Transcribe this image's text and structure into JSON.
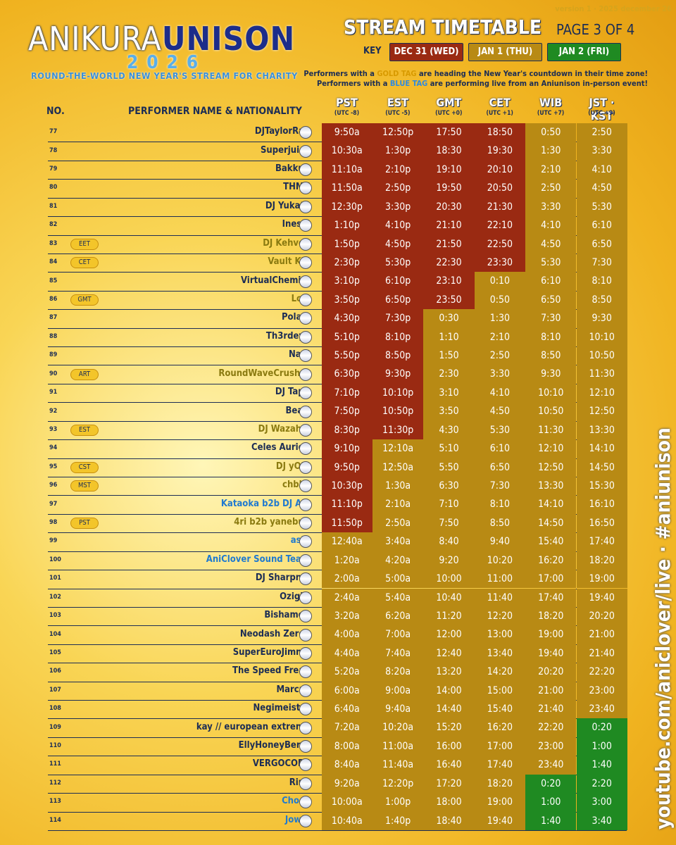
{
  "header": {
    "logo": "ANIKURA",
    "logo_bold": "UNISON",
    "year": "2026",
    "tagline": "ROUND-THE-WORLD NEW YEAR'S STREAM FOR CHARITY",
    "title": "STREAM TIMETABLE",
    "page": "PAGE 3 OF 4",
    "version": "version 1 · 2025 december 26"
  },
  "key": {
    "label": "KEY",
    "days": [
      {
        "label": "DEC 31 (WED)",
        "color": "#9a2a12"
      },
      {
        "label": "JAN 1 (THU)",
        "color": "#b88a14"
      },
      {
        "label": "JAN 2 (FRI)",
        "color": "#1f8a22"
      }
    ]
  },
  "notes": [
    [
      "Performers with a ",
      "GOLD TAG",
      " are heading the New Year's countdown in their time zone!"
    ],
    [
      "Performers with a ",
      "BLUE TAG",
      " are performing live from an Aniunison in-person event!"
    ]
  ],
  "side_text": "youtube.com/aniclover/live · #aniunison",
  "columns": {
    "no": "NO.",
    "performer": "PERFORMER NAME & NATIONALITY",
    "zones": [
      {
        "name": "PST",
        "utc": "(UTC -8)"
      },
      {
        "name": "EST",
        "utc": "(UTC -5)"
      },
      {
        "name": "GMT",
        "utc": "(UTC +0)"
      },
      {
        "name": "CET",
        "utc": "(UTC +1)"
      },
      {
        "name": "WIB",
        "utc": "(UTC +7)"
      },
      {
        "name": "JST · KST",
        "utc": "(UTC +9)"
      }
    ]
  },
  "rows": [
    {
      "no": 77,
      "name": "DJTaylorRae",
      "times": [
        "9:50a",
        "12:50p",
        "17:50",
        "18:50",
        "0:50",
        "2:50"
      ],
      "days": [
        0,
        0,
        0,
        0,
        1,
        1
      ]
    },
    {
      "no": 78,
      "name": "Superjuice",
      "times": [
        "10:30a",
        "1:30p",
        "18:30",
        "19:30",
        "1:30",
        "3:30"
      ],
      "days": [
        0,
        0,
        0,
        0,
        1,
        1
      ]
    },
    {
      "no": 79,
      "name": "Bakkun",
      "times": [
        "11:10a",
        "2:10p",
        "19:10",
        "20:10",
        "2:10",
        "4:10"
      ],
      "days": [
        0,
        0,
        0,
        0,
        1,
        1
      ]
    },
    {
      "no": 80,
      "name": "THMZ",
      "times": [
        "11:50a",
        "2:50p",
        "19:50",
        "20:50",
        "2:50",
        "4:50"
      ],
      "days": [
        0,
        0,
        0,
        0,
        1,
        1
      ]
    },
    {
      "no": 81,
      "name": "DJ Yukata",
      "times": [
        "12:30p",
        "3:30p",
        "20:30",
        "21:30",
        "3:30",
        "5:30"
      ],
      "days": [
        0,
        0,
        0,
        0,
        1,
        1
      ]
    },
    {
      "no": 82,
      "name": "Ineski",
      "times": [
        "1:10p",
        "4:10p",
        "21:10",
        "22:10",
        "4:10",
        "6:10"
      ],
      "days": [
        0,
        0,
        0,
        0,
        1,
        1
      ]
    },
    {
      "no": 83,
      "tag": "EET",
      "name": "DJ Kehveli",
      "name_color": "gold",
      "times": [
        "1:50p",
        "4:50p",
        "21:50",
        "22:50",
        "4:50",
        "6:50"
      ],
      "days": [
        0,
        0,
        0,
        0,
        1,
        1
      ]
    },
    {
      "no": 84,
      "tag": "CET",
      "name": "Vault Kid",
      "name_color": "gold",
      "times": [
        "2:30p",
        "5:30p",
        "22:30",
        "23:30",
        "5:30",
        "7:30"
      ],
      "days": [
        0,
        0,
        0,
        0,
        1,
        1
      ]
    },
    {
      "no": 85,
      "name": "VirtualChemist",
      "times": [
        "3:10p",
        "6:10p",
        "23:10",
        "0:10",
        "6:10",
        "8:10"
      ],
      "days": [
        0,
        0,
        0,
        1,
        1,
        1
      ]
    },
    {
      "no": 86,
      "tag": "GMT",
      "name": "Loic",
      "name_color": "gold",
      "times": [
        "3:50p",
        "6:50p",
        "23:50",
        "0:50",
        "6:50",
        "8:50"
      ],
      "days": [
        0,
        0,
        0,
        1,
        1,
        1
      ]
    },
    {
      "no": 87,
      "name": "Polarr",
      "times": [
        "4:30p",
        "7:30p",
        "0:30",
        "1:30",
        "7:30",
        "9:30"
      ],
      "days": [
        0,
        0,
        1,
        1,
        1,
        1
      ]
    },
    {
      "no": 88,
      "name": "Th3rdeye",
      "times": [
        "5:10p",
        "8:10p",
        "1:10",
        "2:10",
        "8:10",
        "10:10"
      ],
      "days": [
        0,
        0,
        1,
        1,
        1,
        1
      ]
    },
    {
      "no": 89,
      "name": "Nagi",
      "times": [
        "5:50p",
        "8:50p",
        "1:50",
        "2:50",
        "8:50",
        "10:50"
      ],
      "days": [
        0,
        0,
        1,
        1,
        1,
        1
      ]
    },
    {
      "no": 90,
      "tag": "ART",
      "name": "RoundWaveCrusher",
      "name_color": "gold",
      "times": [
        "6:30p",
        "9:30p",
        "2:30",
        "3:30",
        "9:30",
        "11:30"
      ],
      "days": [
        0,
        0,
        1,
        1,
        1,
        1
      ]
    },
    {
      "no": 91,
      "name": "DJ Tapp",
      "times": [
        "7:10p",
        "10:10p",
        "3:10",
        "4:10",
        "10:10",
        "12:10"
      ],
      "days": [
        0,
        0,
        1,
        1,
        1,
        1
      ]
    },
    {
      "no": 92,
      "name": "Beari",
      "times": [
        "7:50p",
        "10:50p",
        "3:50",
        "4:50",
        "10:50",
        "12:50"
      ],
      "days": [
        0,
        0,
        1,
        1,
        1,
        1
      ]
    },
    {
      "no": 93,
      "tag": "EST",
      "name": "DJ Wazahai",
      "name_color": "gold",
      "times": [
        "8:30p",
        "11:30p",
        "4:30",
        "5:30",
        "11:30",
        "13:30"
      ],
      "days": [
        0,
        0,
        1,
        1,
        1,
        1
      ]
    },
    {
      "no": 94,
      "name": "Celes Aurion",
      "times": [
        "9:10p",
        "12:10a",
        "5:10",
        "6:10",
        "12:10",
        "14:10"
      ],
      "days": [
        0,
        1,
        1,
        1,
        1,
        1
      ]
    },
    {
      "no": 95,
      "tag": "CST",
      "name": "DJ yObi",
      "name_color": "gold",
      "times": [
        "9:50p",
        "12:50a",
        "5:50",
        "6:50",
        "12:50",
        "14:50"
      ],
      "days": [
        0,
        1,
        1,
        1,
        1,
        1
      ]
    },
    {
      "no": 96,
      "tag": "MST",
      "name": "chbbs",
      "name_color": "gold",
      "times": [
        "10:30p",
        "1:30a",
        "6:30",
        "7:30",
        "13:30",
        "15:30"
      ],
      "days": [
        0,
        1,
        1,
        1,
        1,
        1
      ]
    },
    {
      "no": 97,
      "name": "Kataoka b2b DJ AJL",
      "name_color": "blue",
      "times": [
        "11:10p",
        "2:10a",
        "7:10",
        "8:10",
        "14:10",
        "16:10"
      ],
      "days": [
        0,
        1,
        1,
        1,
        1,
        1
      ]
    },
    {
      "no": 98,
      "tag": "PST",
      "name": "4ri b2b yanebun",
      "name_color": "gold",
      "times": [
        "11:50p",
        "2:50a",
        "7:50",
        "8:50",
        "14:50",
        "16:50"
      ],
      "days": [
        0,
        1,
        1,
        1,
        1,
        1
      ]
    },
    {
      "no": 99,
      "name": "asid",
      "name_color": "blue",
      "times": [
        "12:40a",
        "3:40a",
        "8:40",
        "9:40",
        "15:40",
        "17:40"
      ],
      "days": [
        1,
        1,
        1,
        1,
        1,
        1
      ]
    },
    {
      "no": 100,
      "name": "AniClover Sound Team",
      "name_color": "blue",
      "times": [
        "1:20a",
        "4:20a",
        "9:20",
        "10:20",
        "16:20",
        "18:20"
      ],
      "days": [
        1,
        1,
        1,
        1,
        1,
        1
      ]
    },
    {
      "no": 101,
      "name": "DJ Sharpnel",
      "times": [
        "2:00a",
        "5:00a",
        "10:00",
        "11:00",
        "17:00",
        "19:00"
      ],
      "days": [
        1,
        1,
        1,
        1,
        1,
        1
      ]
    },
    {
      "no": 102,
      "name": "Ozigiri",
      "times": [
        "2:40a",
        "5:40a",
        "10:40",
        "11:40",
        "17:40",
        "19:40"
      ],
      "days": [
        1,
        1,
        1,
        1,
        1,
        1
      ]
    },
    {
      "no": 103,
      "name": "Bishamon",
      "times": [
        "3:20a",
        "6:20a",
        "11:20",
        "12:20",
        "18:20",
        "20:20"
      ],
      "days": [
        1,
        1,
        1,
        1,
        1,
        1
      ]
    },
    {
      "no": 104,
      "name": "Neodash Zerox",
      "times": [
        "4:00a",
        "7:00a",
        "12:00",
        "13:00",
        "19:00",
        "21:00"
      ],
      "days": [
        1,
        1,
        1,
        1,
        1,
        1
      ]
    },
    {
      "no": 105,
      "name": "SuperEuroJimmy",
      "times": [
        "4:40a",
        "7:40a",
        "12:40",
        "13:40",
        "19:40",
        "21:40"
      ],
      "days": [
        1,
        1,
        1,
        1,
        1,
        1
      ]
    },
    {
      "no": 106,
      "name": "The Speed Freak",
      "times": [
        "5:20a",
        "8:20a",
        "13:20",
        "14:20",
        "20:20",
        "22:20"
      ],
      "days": [
        1,
        1,
        1,
        1,
        1,
        1
      ]
    },
    {
      "no": 107,
      "name": "Marcus",
      "times": [
        "6:00a",
        "9:00a",
        "14:00",
        "15:00",
        "21:00",
        "23:00"
      ],
      "days": [
        1,
        1,
        1,
        1,
        1,
        1
      ]
    },
    {
      "no": 108,
      "name": "Negimeister",
      "times": [
        "6:40a",
        "9:40a",
        "14:40",
        "15:40",
        "21:40",
        "23:40"
      ],
      "days": [
        1,
        1,
        1,
        1,
        1,
        1
      ]
    },
    {
      "no": 109,
      "name": "kay // european extreme",
      "times": [
        "7:20a",
        "10:20a",
        "15:20",
        "16:20",
        "22:20",
        "0:20"
      ],
      "days": [
        1,
        1,
        1,
        1,
        1,
        2
      ]
    },
    {
      "no": 110,
      "name": "EllyHoneyBerry",
      "times": [
        "8:00a",
        "11:00a",
        "16:00",
        "17:00",
        "23:00",
        "1:00"
      ],
      "days": [
        1,
        1,
        1,
        1,
        1,
        2
      ]
    },
    {
      "no": 111,
      "name": "VERGOCORE",
      "times": [
        "8:40a",
        "11:40a",
        "16:40",
        "17:40",
        "23:40",
        "1:40"
      ],
      "days": [
        1,
        1,
        1,
        1,
        1,
        2
      ]
    },
    {
      "no": 112,
      "name": "Rine",
      "times": [
        "9:20a",
        "12:20p",
        "17:20",
        "18:20",
        "0:20",
        "2:20"
      ],
      "days": [
        1,
        1,
        1,
        1,
        2,
        2
      ]
    },
    {
      "no": 113,
      "name": "Choco",
      "name_color": "blue",
      "times": [
        "10:00a",
        "1:00p",
        "18:00",
        "19:00",
        "1:00",
        "3:00"
      ],
      "days": [
        1,
        1,
        1,
        1,
        2,
        2
      ]
    },
    {
      "no": 114,
      "name": "Jowie",
      "name_color": "blue",
      "times": [
        "10:40a",
        "1:40p",
        "18:40",
        "19:40",
        "1:40",
        "3:40"
      ],
      "days": [
        1,
        1,
        1,
        1,
        2,
        2
      ]
    }
  ]
}
